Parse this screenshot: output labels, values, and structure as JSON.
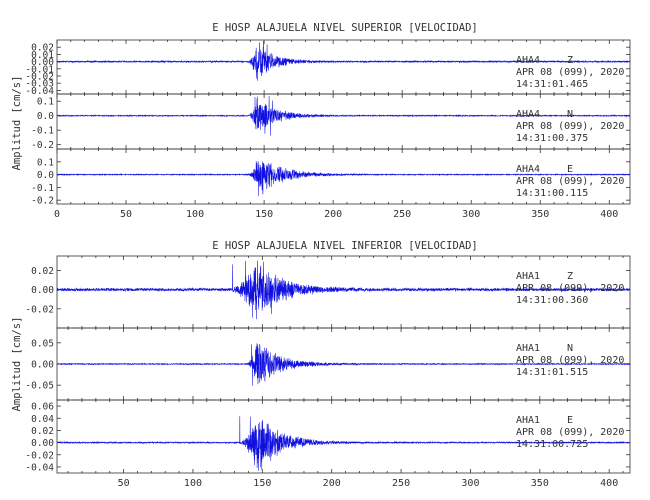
{
  "chart_data": [
    {
      "type": "line",
      "title": "E HOSP ALAJUELA NIVEL SUPERIOR [VELOCIDAD]",
      "ylabel": "Amplitud [cm/s]",
      "xlim": [
        0,
        415
      ],
      "xticks": [
        0,
        50,
        100,
        150,
        200,
        250,
        300,
        350,
        400
      ],
      "trace_color": "#1010e0",
      "panels": [
        {
          "station": "AHA4",
          "component": "Z",
          "date": "APR 08 (099), 2020",
          "time": "14:31:01.465",
          "ylim": [
            -0.045,
            0.03
          ],
          "yticks": [
            "0.02",
            "0.01",
            "0.00",
            "-0.01",
            "-0.02",
            "-0.03",
            "-0.04"
          ],
          "ytick_values": [
            0.02,
            0.01,
            0.0,
            -0.01,
            -0.02,
            -0.03,
            -0.04
          ],
          "noise": 0.0012,
          "peak": 0.03,
          "onset": 138,
          "peak_time": 145,
          "decay": 12
        },
        {
          "station": "AHA4",
          "component": "N",
          "date": "APR 08 (099), 2020",
          "time": "14:31:00.375",
          "ylim": [
            -0.23,
            0.15
          ],
          "yticks": [
            "0.1",
            "0.0",
            "-0.1",
            "-0.2"
          ],
          "ytick_values": [
            0.1,
            0.0,
            -0.1,
            -0.2
          ],
          "noise": 0.004,
          "peak": 0.14,
          "onset": 138,
          "peak_time": 145,
          "decay": 14
        },
        {
          "station": "AHA4",
          "component": "E",
          "date": "APR 08 (099), 2020",
          "time": "14:31:00.115",
          "ylim": [
            -0.23,
            0.2
          ],
          "yticks": [
            "0.1",
            "0.0",
            "-0.1",
            "-0.2"
          ],
          "ytick_values": [
            0.1,
            0.0,
            -0.1,
            -0.2
          ],
          "noise": 0.004,
          "peak": 0.19,
          "onset": 138,
          "peak_time": 146,
          "decay": 16
        }
      ]
    },
    {
      "type": "line",
      "title": "E HOSP ALAJUELA NIVEL INFERIOR [VELOCIDAD]",
      "ylabel": "Amplitud [cm/s]",
      "xlim": [
        2,
        415
      ],
      "xticks": [
        50,
        100,
        150,
        200,
        250,
        300,
        350,
        400
      ],
      "trace_color": "#1010e0",
      "panels": [
        {
          "station": "AHA1",
          "component": "Z",
          "date": "APR 08 (099), 2020",
          "time": "14:31:00.360",
          "ylim": [
            -0.04,
            0.035
          ],
          "yticks": [
            "0.02",
            "0.00",
            "-0.02"
          ],
          "ytick_values": [
            0.02,
            0.0,
            -0.02
          ],
          "noise": 0.0018,
          "peak": 0.034,
          "onset": 126,
          "peak_time": 145,
          "decay": 18
        },
        {
          "station": "AHA1",
          "component": "N",
          "date": "APR 08 (099), 2020",
          "time": "14:31:01.515",
          "ylim": [
            -0.085,
            0.085
          ],
          "yticks": [
            "0.05",
            "0.00",
            "-0.05"
          ],
          "ytick_values": [
            0.05,
            0.0,
            -0.05
          ],
          "noise": 0.0015,
          "peak": 0.06,
          "onset": 138,
          "peak_time": 146,
          "decay": 16
        },
        {
          "station": "AHA1",
          "component": "E",
          "date": "APR 08 (099), 2020",
          "time": "14:31:00.725",
          "ylim": [
            -0.05,
            0.07
          ],
          "yticks": [
            "0.06",
            "0.04",
            "0.02",
            "0.00",
            "-0.02",
            "-0.04"
          ],
          "ytick_values": [
            0.06,
            0.04,
            0.02,
            0.0,
            -0.02,
            -0.04
          ],
          "noise": 0.0012,
          "peak": 0.055,
          "onset": 132,
          "peak_time": 147,
          "decay": 16
        }
      ]
    }
  ]
}
